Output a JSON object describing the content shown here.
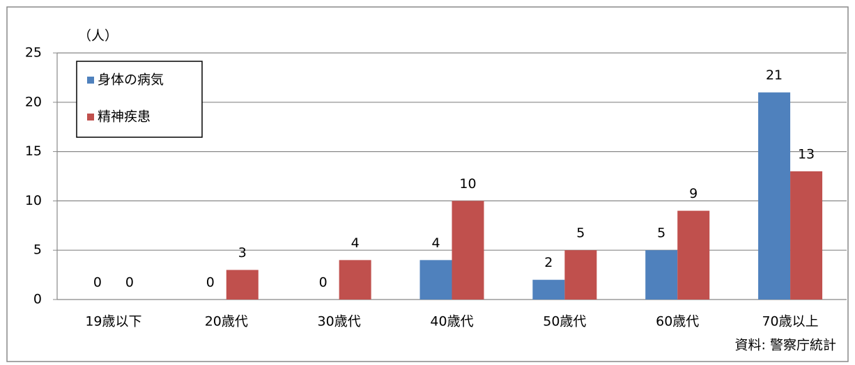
{
  "chart_data": {
    "type": "bar",
    "y_label": "（人）",
    "note": "資料: 警察庁統計",
    "categories": [
      "19歳以下",
      "20歳代",
      "30歳代",
      "40歳代",
      "50歳代",
      "60歳代",
      "70歳以上"
    ],
    "series": [
      {
        "name": "身体の病気",
        "color": "#4f81bd",
        "values": [
          0,
          0,
          0,
          4,
          2,
          5,
          21
        ]
      },
      {
        "name": "精神疾患",
        "color": "#c0504d",
        "values": [
          0,
          3,
          4,
          10,
          5,
          9,
          13
        ]
      }
    ],
    "ylim": [
      0,
      25
    ],
    "yticks": [
      0,
      5,
      10,
      15,
      20,
      25
    ],
    "grid": true,
    "legend": "top-left"
  }
}
